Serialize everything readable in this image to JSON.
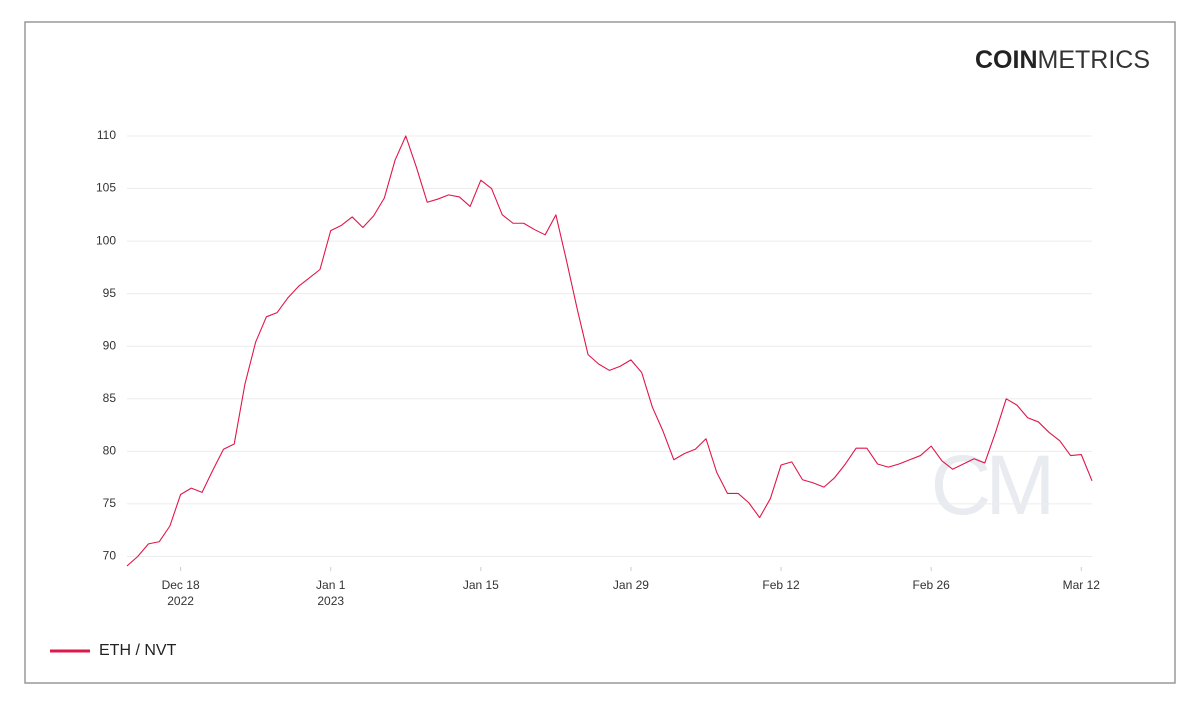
{
  "chart_data": {
    "type": "line",
    "brand": {
      "bold": "COIN",
      "light": "METRICS"
    },
    "watermark": "CM",
    "x": [
      "2022-12-13",
      "2022-12-14",
      "2022-12-15",
      "2022-12-16",
      "2022-12-17",
      "2022-12-18",
      "2022-12-19",
      "2022-12-20",
      "2022-12-21",
      "2022-12-22",
      "2022-12-23",
      "2022-12-24",
      "2022-12-25",
      "2022-12-26",
      "2022-12-27",
      "2022-12-28",
      "2022-12-29",
      "2022-12-30",
      "2022-12-31",
      "2023-01-01",
      "2023-01-02",
      "2023-01-03",
      "2023-01-04",
      "2023-01-05",
      "2023-01-06",
      "2023-01-07",
      "2023-01-08",
      "2023-01-09",
      "2023-01-10",
      "2023-01-11",
      "2023-01-12",
      "2023-01-13",
      "2023-01-14",
      "2023-01-15",
      "2023-01-16",
      "2023-01-17",
      "2023-01-18",
      "2023-01-19",
      "2023-01-20",
      "2023-01-21",
      "2023-01-22",
      "2023-01-23",
      "2023-01-24",
      "2023-01-25",
      "2023-01-26",
      "2023-01-27",
      "2023-01-28",
      "2023-01-29",
      "2023-01-30",
      "2023-01-31",
      "2023-02-01",
      "2023-02-02",
      "2023-02-03",
      "2023-02-04",
      "2023-02-05",
      "2023-02-06",
      "2023-02-07",
      "2023-02-08",
      "2023-02-09",
      "2023-02-10",
      "2023-02-11",
      "2023-02-12",
      "2023-02-13",
      "2023-02-14",
      "2023-02-15",
      "2023-02-16",
      "2023-02-17",
      "2023-02-18",
      "2023-02-19",
      "2023-02-20",
      "2023-02-21",
      "2023-02-22",
      "2023-02-23",
      "2023-02-24",
      "2023-02-25",
      "2023-02-26",
      "2023-02-27",
      "2023-02-28",
      "2023-03-01",
      "2023-03-02",
      "2023-03-03",
      "2023-03-04",
      "2023-03-05",
      "2023-03-06",
      "2023-03-07",
      "2023-03-08",
      "2023-03-09",
      "2023-03-10",
      "2023-03-11",
      "2023-03-12",
      "2023-03-13"
    ],
    "series": [
      {
        "name": "ETH / NVT",
        "color": "#e0174a",
        "values": [
          69.1,
          70.0,
          71.2,
          71.4,
          72.9,
          75.9,
          76.5,
          76.1,
          78.2,
          80.2,
          80.7,
          86.4,
          90.4,
          92.8,
          93.2,
          94.6,
          95.7,
          96.5,
          97.3,
          101.0,
          101.5,
          102.3,
          101.3,
          102.4,
          104.1,
          107.7,
          110.0,
          107.0,
          103.7,
          104.0,
          104.4,
          104.2,
          103.3,
          105.8,
          105.0,
          102.5,
          101.7,
          101.7,
          101.1,
          100.6,
          102.5,
          98.1,
          93.5,
          89.2,
          88.3,
          87.7,
          88.1,
          88.7,
          87.5,
          84.2,
          81.9,
          79.2,
          79.8,
          80.2,
          81.2,
          78.0,
          76.0,
          76.0,
          75.1,
          73.7,
          75.5,
          78.7,
          79.0,
          77.3,
          77.0,
          76.6,
          77.5,
          78.8,
          80.3,
          80.3,
          78.8,
          78.5,
          78.8,
          79.2,
          79.6,
          80.5,
          79.1,
          78.3,
          78.8,
          79.3,
          78.9,
          81.8,
          85.0,
          84.4,
          83.2,
          82.8,
          81.8,
          81.0,
          79.6,
          79.7,
          77.2
        ]
      }
    ],
    "xlim": [
      "2022-12-13",
      "2023-03-13"
    ],
    "xticks": [
      {
        "value": "2022-12-18",
        "label": "Dec 18",
        "sublabel": "2022"
      },
      {
        "value": "2023-01-01",
        "label": "Jan 1",
        "sublabel": "2023"
      },
      {
        "value": "2023-01-15",
        "label": "Jan 15"
      },
      {
        "value": "2023-01-29",
        "label": "Jan 29"
      },
      {
        "value": "2023-02-12",
        "label": "Feb 12"
      },
      {
        "value": "2023-02-26",
        "label": "Feb 26"
      },
      {
        "value": "2023-03-12",
        "label": "Mar 12"
      }
    ],
    "ylim": [
      69,
      110
    ],
    "yticks": [
      70,
      75,
      80,
      85,
      90,
      95,
      100,
      105,
      110
    ],
    "grid": true,
    "legend": "bottom-left"
  }
}
